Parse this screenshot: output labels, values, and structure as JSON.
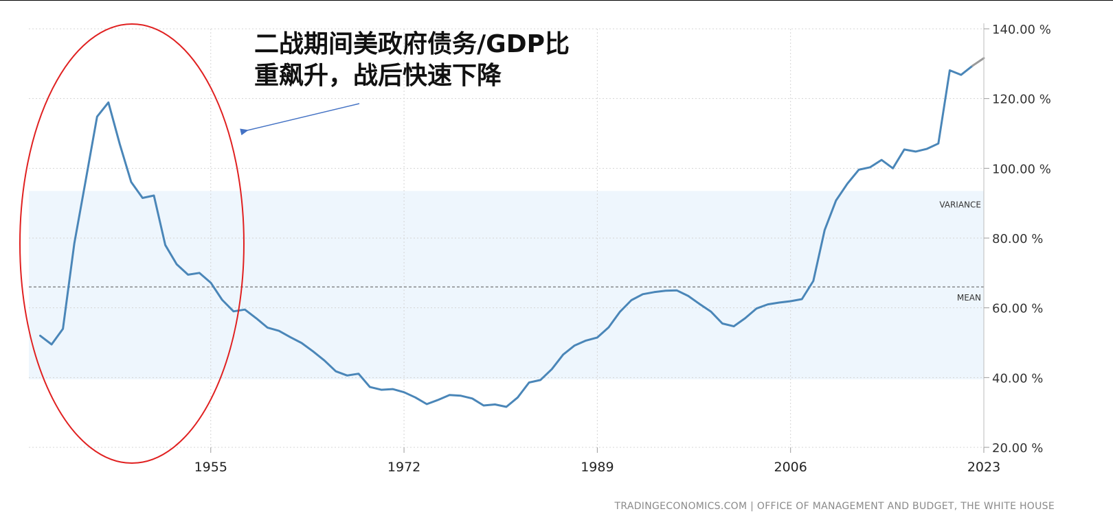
{
  "chart_data": {
    "type": "line",
    "title": "",
    "xlabel": "",
    "ylabel": "",
    "x_ticks": [
      "1955",
      "1972",
      "1989",
      "2006",
      "2023"
    ],
    "y_ticks": [
      "20.00 %",
      "40.00 %",
      "60.00 %",
      "80.00 %",
      "100.00 %",
      "120.00 %",
      "140.00 %"
    ],
    "xlim": [
      1939,
      2023
    ],
    "ylim": [
      20,
      140
    ],
    "grid": true,
    "mean": 66.0,
    "mean_label": "MEAN",
    "variance_band": [
      39.5,
      93.5
    ],
    "variance_label": "VARIANCE",
    "series": [
      {
        "color": "#4a86b8",
        "x": [
          1940,
          1941,
          1942,
          1943,
          1944,
          1945,
          1946,
          1947,
          1948,
          1949,
          1950,
          1951,
          1952,
          1953,
          1954,
          1955,
          1956,
          1957,
          1958,
          1959,
          1960,
          1961,
          1962,
          1963,
          1964,
          1965,
          1966,
          1967,
          1968,
          1969,
          1970,
          1971,
          1972,
          1973,
          1974,
          1975,
          1976,
          1977,
          1978,
          1979,
          1980,
          1981,
          1982,
          1983,
          1984,
          1985,
          1986,
          1987,
          1988,
          1989,
          1990,
          1991,
          1992,
          1993,
          1994,
          1995,
          1996,
          1997,
          1998,
          1999,
          2000,
          2001,
          2002,
          2003,
          2004,
          2005,
          2006,
          2007,
          2008,
          2009,
          2010,
          2011,
          2012,
          2013,
          2014,
          2015,
          2016,
          2017,
          2018,
          2019,
          2020,
          2021,
          2022
        ],
        "values": [
          52.0,
          49.5,
          54.0,
          78.5,
          96.5,
          114.8,
          118.9,
          106.9,
          96.1,
          91.5,
          92.2,
          78.0,
          72.5,
          69.5,
          70.0,
          67.2,
          62.3,
          59.0,
          59.5,
          57.0,
          54.3,
          53.4,
          51.6,
          49.9,
          47.5,
          44.9,
          41.8,
          40.6,
          41.1,
          37.3,
          36.5,
          36.7,
          35.8,
          34.3,
          32.4,
          33.6,
          35.0,
          34.8,
          34.0,
          32.0,
          32.3,
          31.6,
          34.3,
          38.6,
          39.3,
          42.4,
          46.6,
          49.2,
          50.6,
          51.5,
          54.4,
          58.9,
          62.2,
          63.9,
          64.5,
          64.9,
          65.0,
          63.4,
          61.1,
          58.9,
          55.5,
          54.7,
          57.0,
          59.8,
          61.0,
          61.5,
          61.9,
          62.5,
          67.7,
          82.3,
          90.8,
          95.6,
          99.6,
          100.3,
          102.4,
          100.0,
          105.4,
          104.8,
          105.6,
          107.1,
          128.1,
          126.8,
          129.4
        ]
      },
      {
        "color": "#9a9a9a",
        "x": [
          2022,
          2023
        ],
        "values": [
          129.4,
          131.6
        ]
      }
    ]
  },
  "annotation": {
    "line1": "二战期间美政府债务/GDP比",
    "line2": "重飙升，战后快速下降",
    "circle_color": "#e02020",
    "arrow_color": "#4472c4"
  },
  "source": "TRADINGECONOMICS.COM  |  OFFICE OF MANAGEMENT AND BUDGET, THE WHITE HOUSE"
}
